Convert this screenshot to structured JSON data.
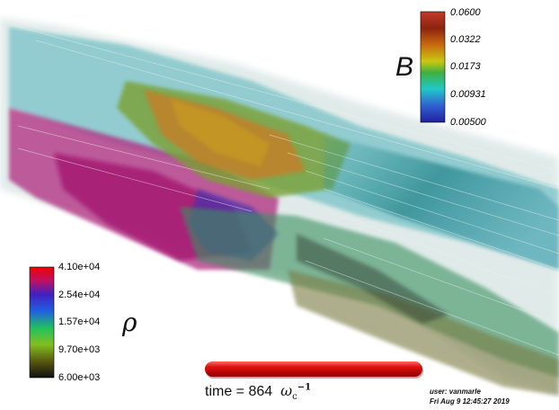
{
  "colorbar_B": {
    "symbol": "B",
    "labels": [
      "0.0600",
      "0.0322",
      "0.0173",
      "0.00931",
      "0.00500"
    ]
  },
  "colorbar_rho": {
    "symbol": "ρ",
    "labels": [
      "4.10e+04",
      "2.54e+04",
      "1.57e+04",
      "9.70e+03",
      "6.00e+03"
    ]
  },
  "time": {
    "prefix": "time =",
    "value": "864",
    "unit_base": "ω",
    "unit_sub": "c",
    "unit_sup": "−1"
  },
  "progress": 1.0,
  "annotation": {
    "user": "user: vanmarle",
    "date": "Fri Aug  9 12:45:27 2019"
  }
}
